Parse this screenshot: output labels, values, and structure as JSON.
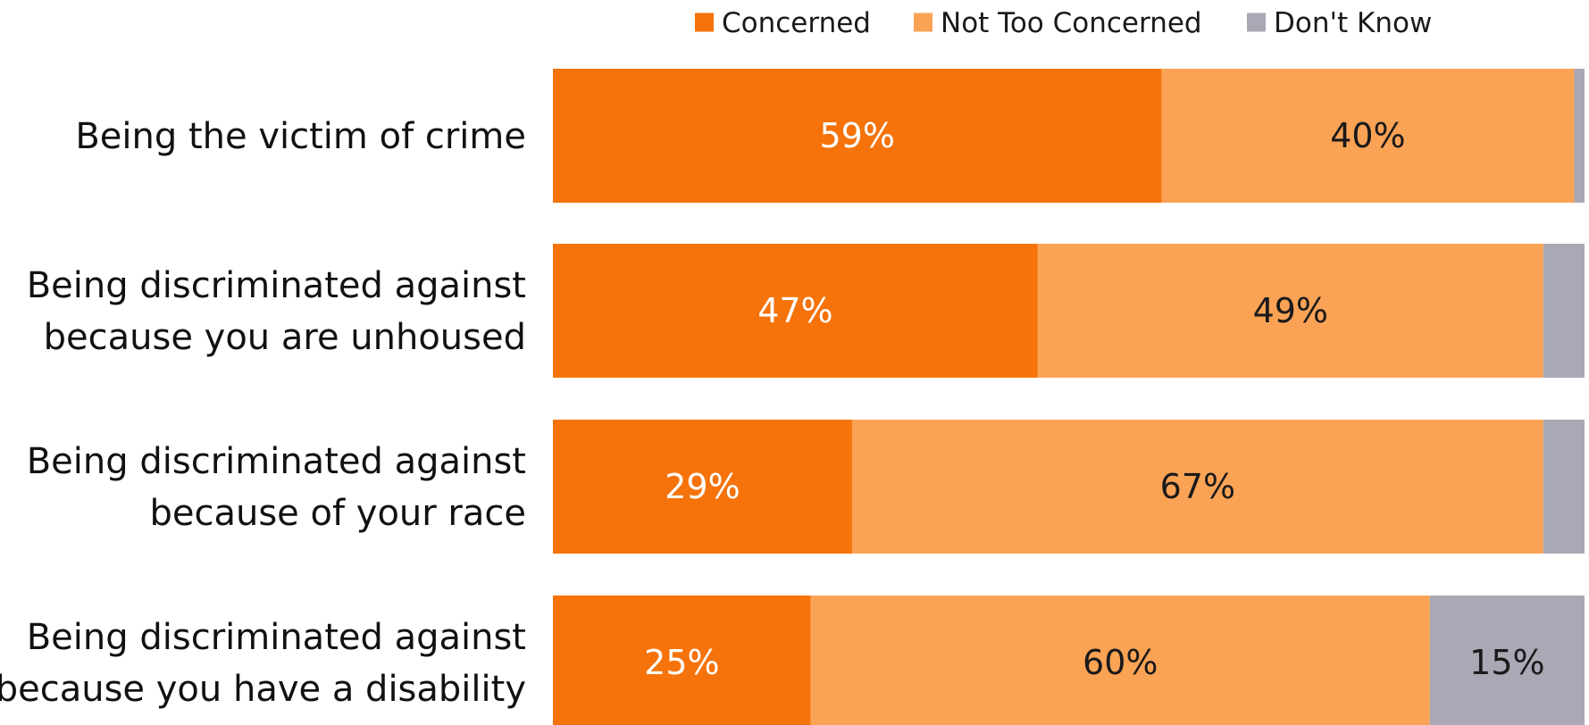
{
  "colors": {
    "concerned": "#f5730a",
    "not_too_concerned": "#fba355",
    "dont_know": "#a9a9b5",
    "label_on_dark": "#ffffff",
    "label_on_light": "#1a1a1a"
  },
  "chart_data": {
    "type": "bar",
    "orientation": "horizontal",
    "stacked": true,
    "normalized_to": 100,
    "unit": "%",
    "title": "",
    "xlabel": "",
    "ylabel": "",
    "xlim": [
      0,
      100
    ],
    "grid": false,
    "legend": {
      "placement": "top-right"
    },
    "categories": [
      [
        "Being the victim of crime"
      ],
      [
        "Being discriminated against",
        "because you are unhoused"
      ],
      [
        "Being discriminated against",
        "because of your race"
      ],
      [
        "Being discriminated against",
        "because you have a disability"
      ]
    ],
    "series": [
      {
        "name": "Concerned",
        "color_key": "concerned",
        "values": [
          59,
          47,
          29,
          25
        ],
        "labels": [
          "59%",
          "47%",
          "29%",
          "25%"
        ]
      },
      {
        "name": "Not Too Concerned",
        "color_key": "not_too_concerned",
        "values": [
          40,
          49,
          67,
          60
        ],
        "labels": [
          "40%",
          "49%",
          "67%",
          "60%"
        ]
      },
      {
        "name": "Don't Know",
        "color_key": "dont_know",
        "values": [
          1,
          4,
          4,
          15
        ],
        "labels": [
          "",
          "",
          "",
          "15%"
        ]
      }
    ]
  }
}
